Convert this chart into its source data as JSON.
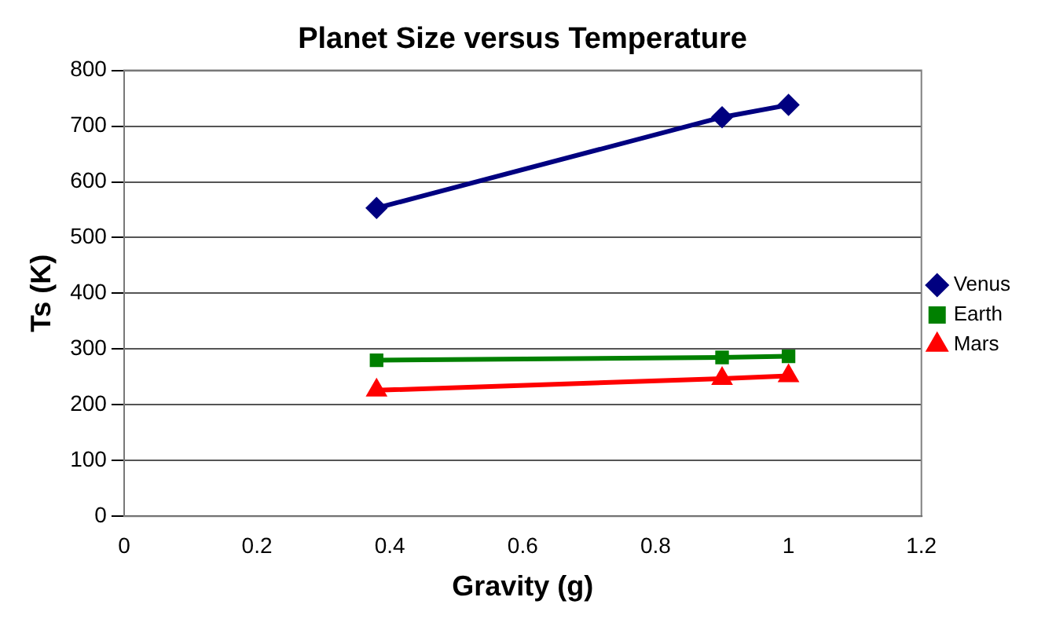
{
  "chart_data": {
    "type": "line",
    "title": "Planet Size versus Temperature",
    "xlabel": "Gravity (g)",
    "ylabel": "Ts (K)",
    "xlim": [
      0,
      1.2
    ],
    "xticks": [
      0,
      0.2,
      0.4,
      0.6,
      0.8,
      1,
      1.2
    ],
    "ylim": [
      0,
      800
    ],
    "yticks": [
      0,
      100,
      200,
      300,
      400,
      500,
      600,
      700,
      800
    ],
    "grid": "y",
    "legend": "right",
    "line_style": "solid",
    "series": [
      {
        "name": "Venus",
        "color": "#000080",
        "marker": "diamond",
        "x": [
          0.38,
          0.9,
          1
        ],
        "values": [
          553,
          716,
          738
        ]
      },
      {
        "name": "Earth",
        "color": "#008000",
        "marker": "square",
        "x": [
          0.38,
          0.9,
          1
        ],
        "values": [
          280,
          285,
          287
        ]
      },
      {
        "name": "Mars",
        "color": "#ff0000",
        "marker": "triangle",
        "x": [
          0.38,
          0.9,
          1
        ],
        "values": [
          226,
          247,
          252
        ]
      }
    ]
  }
}
